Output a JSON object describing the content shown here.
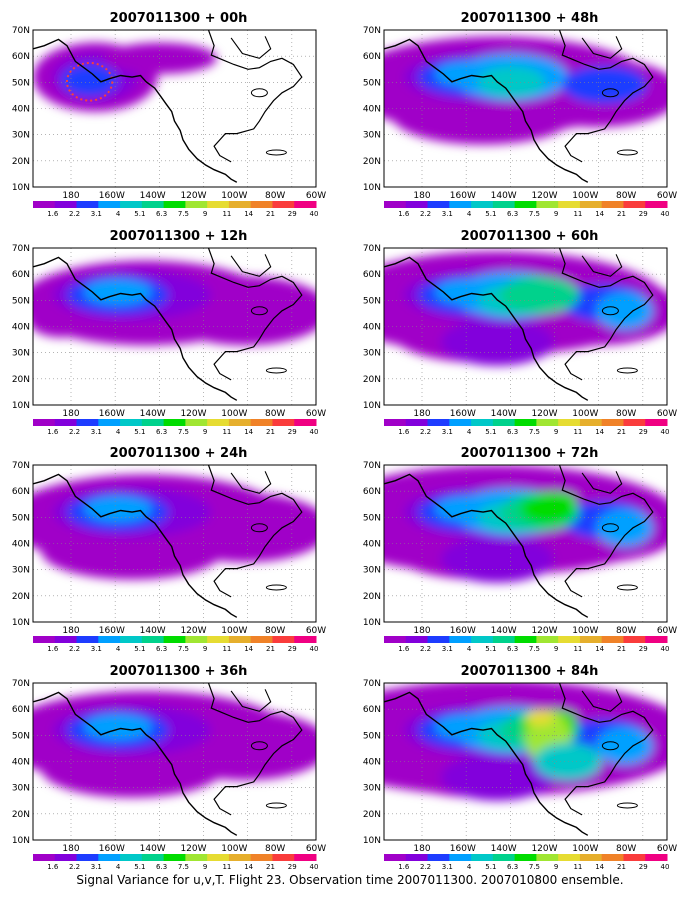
{
  "figure": {
    "caption": "Signal Variance for u,v,T. Flight 23. Observation time 2007011300. 2007010800 ensemble."
  },
  "axes": {
    "lat_ticks": [
      "70N",
      "60N",
      "50N",
      "40N",
      "30N",
      "20N",
      "10N"
    ],
    "lon_ticks": [
      "180",
      "160W",
      "140W",
      "120W",
      "100W",
      "80W",
      "60W"
    ]
  },
  "colorbar": {
    "levels": [
      "1.6",
      "2.2",
      "3.1",
      "4",
      "5.1",
      "6.3",
      "7.5",
      "9",
      "11",
      "14",
      "21",
      "29",
      "40"
    ],
    "colors": [
      "#a000c8",
      "#8200dc",
      "#1e3cff",
      "#00a0ff",
      "#00c8c8",
      "#00d28c",
      "#00dc00",
      "#a0e632",
      "#e6dc32",
      "#e6af2d",
      "#f08228",
      "#fa3c3c",
      "#f00082"
    ]
  },
  "panels": [
    {
      "title": "2007011300 + 00h",
      "level": 0
    },
    {
      "title": "2007011300 + 48h",
      "level": 3
    },
    {
      "title": "2007011300 + 12h",
      "level": 1
    },
    {
      "title": "2007011300 + 60h",
      "level": 4
    },
    {
      "title": "2007011300 + 24h",
      "level": 2
    },
    {
      "title": "2007011300 + 72h",
      "level": 5
    },
    {
      "title": "2007011300 + 36h",
      "level": 2.5
    },
    {
      "title": "2007011300 + 84h",
      "level": 6
    }
  ]
}
